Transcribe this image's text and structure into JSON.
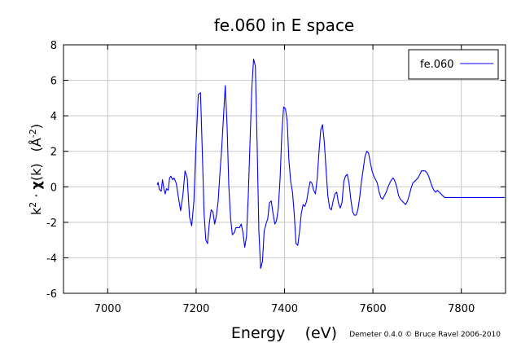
{
  "chart_data": {
    "type": "line",
    "title": "fe.060 in E space",
    "xlabel": "Energy    (eV)",
    "ylabel_parts": {
      "k": "k",
      "exp": "2",
      "dot": " · ",
      "chi": "χ",
      "chi_arg": "(k)",
      "unit_open": "(Å",
      "unit_exp": "-2",
      "unit_close": ")"
    },
    "credit": "Demeter 0.4.0 © Bruce Ravel 2006-2010",
    "xlim": [
      6900,
      7900
    ],
    "ylim": [
      -6,
      8
    ],
    "xticks": [
      7000,
      7200,
      7400,
      7600,
      7800
    ],
    "yticks": [
      -6,
      -4,
      -2,
      0,
      2,
      4,
      6,
      8
    ],
    "grid": true,
    "legend_position": "top-right",
    "series": [
      {
        "name": "fe.060",
        "color": "#0000ff",
        "x": [
          7112,
          7114,
          7117,
          7121,
          7124,
          7127,
          7130,
          7133,
          7137,
          7140,
          7143,
          7147,
          7150,
          7155,
          7160,
          7165,
          7170,
          7175,
          7180,
          7185,
          7190,
          7195,
          7200,
          7205,
          7210,
          7214,
          7218,
          7222,
          7226,
          7230,
          7234,
          7238,
          7242,
          7246,
          7250,
          7254,
          7258,
          7262,
          7266,
          7270,
          7274,
          7278,
          7282,
          7286,
          7290,
          7294,
          7298,
          7302,
          7306,
          7310,
          7314,
          7318,
          7322,
          7326,
          7330,
          7334,
          7338,
          7342,
          7346,
          7350,
          7354,
          7358,
          7362,
          7366,
          7370,
          7374,
          7378,
          7382,
          7386,
          7390,
          7394,
          7398,
          7402,
          7406,
          7410,
          7414,
          7418,
          7422,
          7426,
          7430,
          7434,
          7438,
          7442,
          7446,
          7450,
          7454,
          7458,
          7462,
          7466,
          7470,
          7474,
          7478,
          7482,
          7486,
          7490,
          7494,
          7498,
          7502,
          7506,
          7510,
          7514,
          7518,
          7522,
          7526,
          7530,
          7534,
          7538,
          7542,
          7546,
          7550,
          7554,
          7558,
          7562,
          7566,
          7570,
          7574,
          7578,
          7582,
          7586,
          7590,
          7594,
          7598,
          7602,
          7606,
          7610,
          7614,
          7618,
          7622,
          7626,
          7630,
          7634,
          7638,
          7642,
          7646,
          7650,
          7654,
          7658,
          7662,
          7666,
          7670,
          7674,
          7678,
          7682,
          7686,
          7690,
          7694,
          7698,
          7702,
          7706,
          7710,
          7714,
          7718,
          7722,
          7726,
          7730,
          7734,
          7738,
          7742,
          7746,
          7750,
          7754,
          7758,
          7762,
          7766,
          7770,
          7774,
          7778,
          7782,
          7786,
          7790,
          7794,
          7798,
          7802,
          7806,
          7810,
          7814,
          7818,
          7822,
          7826,
          7830,
          7834,
          7838,
          7842,
          7846,
          7850,
          7854,
          7858,
          7862,
          7866,
          7870,
          7874,
          7878,
          7882,
          7886,
          7890,
          7894,
          7898
        ],
        "y": [
          0.1,
          0.25,
          -0.15,
          -0.25,
          0.4,
          -0.1,
          -0.4,
          -0.1,
          -0.2,
          0.5,
          0.6,
          0.4,
          0.5,
          0.2,
          -0.6,
          -1.35,
          -0.5,
          0.9,
          0.5,
          -1.7,
          -2.2,
          -0.8,
          2.5,
          5.2,
          5.3,
          2.0,
          -1.5,
          -3.0,
          -3.2,
          -2.0,
          -1.3,
          -1.4,
          -2.1,
          -1.6,
          -0.8,
          0.8,
          2.2,
          4.0,
          5.7,
          3.5,
          0.0,
          -1.8,
          -2.7,
          -2.6,
          -2.3,
          -2.3,
          -2.3,
          -2.1,
          -2.6,
          -3.4,
          -2.8,
          -0.5,
          2.5,
          5.5,
          7.2,
          6.8,
          2.5,
          -2.5,
          -4.6,
          -4.2,
          -2.5,
          -2.1,
          -1.8,
          -0.9,
          -0.8,
          -1.5,
          -2.1,
          -1.9,
          -1.2,
          0.5,
          3.0,
          4.5,
          4.4,
          3.7,
          1.5,
          0.3,
          -0.3,
          -1.5,
          -3.2,
          -3.3,
          -2.5,
          -1.5,
          -1.0,
          -1.1,
          -0.8,
          -0.2,
          0.3,
          0.2,
          -0.2,
          -0.4,
          0.5,
          2.0,
          3.2,
          3.5,
          2.5,
          1.0,
          -0.5,
          -1.2,
          -1.3,
          -0.8,
          -0.4,
          -0.3,
          -0.9,
          -1.2,
          -0.9,
          0.3,
          0.6,
          0.7,
          0.2,
          -0.7,
          -1.4,
          -1.6,
          -1.6,
          -1.3,
          -0.6,
          0.3,
          1.0,
          1.7,
          2.0,
          1.9,
          1.4,
          0.9,
          0.6,
          0.4,
          0.2,
          -0.3,
          -0.6,
          -0.7,
          -0.5,
          -0.3,
          0.0,
          0.2,
          0.4,
          0.5,
          0.3,
          0.0,
          -0.5,
          -0.7,
          -0.8,
          -0.9,
          -1.0,
          -0.8,
          -0.5,
          -0.1,
          0.2,
          0.3,
          0.4,
          0.5,
          0.7,
          0.9,
          0.9,
          0.9,
          0.8,
          0.6,
          0.3,
          0.0,
          -0.2,
          -0.3,
          -0.2,
          -0.3,
          -0.4,
          -0.5,
          -0.6,
          -0.6,
          -0.6,
          -0.6,
          -0.6,
          -0.6,
          -0.6,
          -0.6,
          -0.6,
          -0.6,
          -0.6,
          -0.6,
          -0.6,
          -0.6,
          -0.6,
          -0.6,
          -0.6,
          -0.6,
          -0.6,
          -0.6,
          -0.6,
          -0.6,
          -0.6,
          -0.6,
          -0.6,
          -0.6,
          -0.6,
          -0.6,
          -0.6,
          -0.6,
          -0.6,
          -0.6,
          -0.6,
          -0.6,
          -0.6
        ]
      }
    ]
  }
}
